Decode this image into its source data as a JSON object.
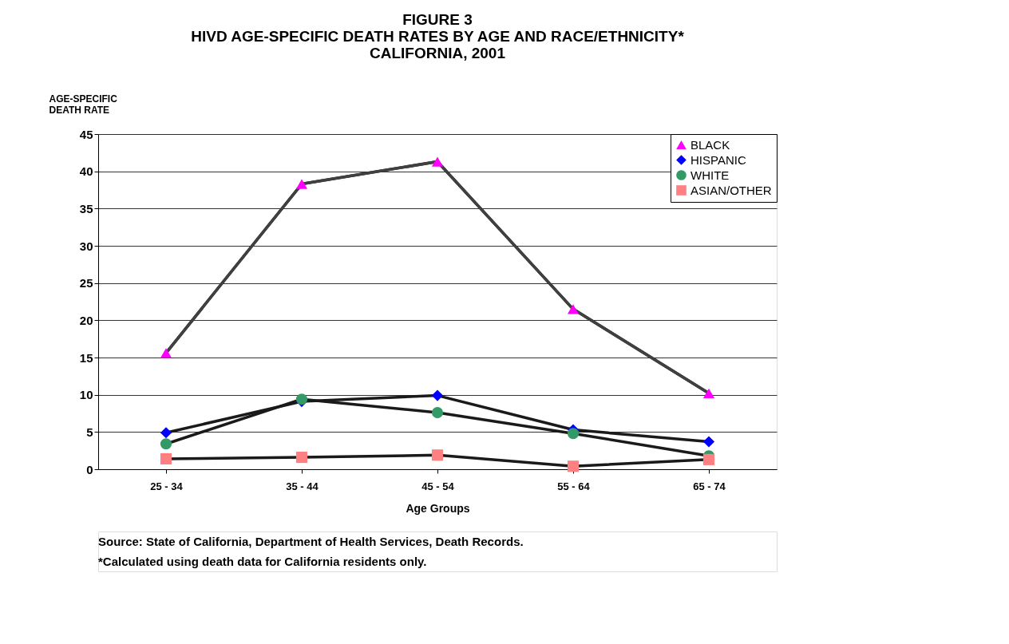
{
  "chart_data": {
    "type": "line",
    "title": "FIGURE 3\nHIVD AGE-SPECIFIC DEATH RATES BY AGE AND RACE/ETHNICITY*\nCALIFORNIA, 2001",
    "xlabel": "Age Groups",
    "ylabel": "AGE-SPECIFIC DEATH RATE",
    "categories": [
      "25 - 34",
      "35 - 44",
      "45 - 54",
      "55 - 64",
      "65 - 74"
    ],
    "series": [
      {
        "name": "BLACK",
        "color": "#ff00ff",
        "marker": "triangle",
        "values": [
          15.6,
          38.3,
          41.3,
          21.5,
          10.2
        ]
      },
      {
        "name": "HISPANIC",
        "color": "#0000ff",
        "marker": "diamond",
        "values": [
          4.9,
          9.1,
          9.9,
          5.3,
          3.7
        ]
      },
      {
        "name": "WHITE",
        "color": "#339966",
        "marker": "circle",
        "values": [
          3.4,
          9.4,
          7.6,
          4.8,
          1.8
        ]
      },
      {
        "name": "ASIAN/OTHER",
        "color": "#ff8080",
        "marker": "square",
        "values": [
          1.4,
          1.6,
          1.9,
          0.4,
          1.3
        ]
      }
    ],
    "ylim": [
      0,
      45
    ],
    "yticks": [
      0,
      5,
      10,
      15,
      20,
      25,
      30,
      35,
      40,
      45
    ],
    "grid": "y",
    "legend": "top right",
    "annotations": [
      "Source:  State of California, Department of Health Services, Death Records.",
      "*Calculated using death data for California residents only."
    ]
  }
}
